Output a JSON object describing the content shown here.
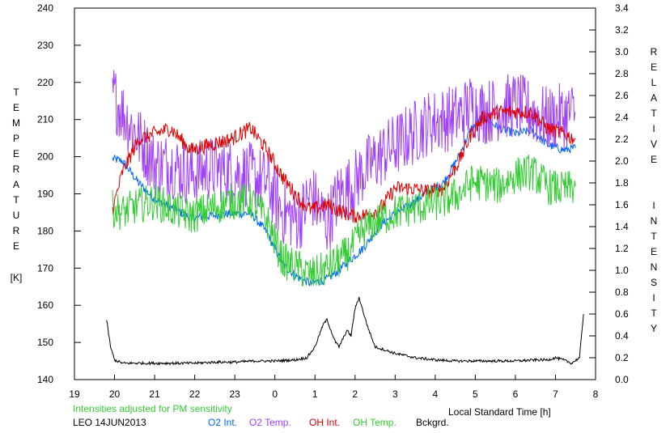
{
  "chart_data": {
    "type": "line",
    "xlabel": "Local Standard Time [h]",
    "ylabel_left": "TEMPERATURE",
    "ylabel_left_unit": "[K]",
    "ylabel_right": "RELATIVE INTENSITY",
    "x_range": [
      19,
      32
    ],
    "x_tick_labels": [
      "19",
      "20",
      "21",
      "22",
      "23",
      "0",
      "1",
      "2",
      "3",
      "4",
      "5",
      "6",
      "7",
      "8"
    ],
    "ylim_left": [
      140,
      240
    ],
    "y_left_ticks": [
      140,
      150,
      160,
      170,
      180,
      190,
      200,
      210,
      220,
      230,
      240
    ],
    "ylim_right": [
      0.0,
      3.4
    ],
    "y_right_ticks": [
      "0.0",
      "0.2",
      "0.4",
      "0.6",
      "0.8",
      "1.0",
      "1.2",
      "1.4",
      "1.6",
      "1.8",
      "2.0",
      "2.2",
      "2.4",
      "2.6",
      "2.8",
      "3.0",
      "3.2",
      "3.4"
    ],
    "grid": false,
    "annotation": "Intensities adjusted for PM sensitivity",
    "station": "LEO 14JUN2013",
    "series": [
      {
        "name": "O2 Int.",
        "axis": "right",
        "color": "#0066ff",
        "x": [
          19.95,
          20.2,
          20.6,
          21.0,
          21.4,
          21.9,
          22.4,
          22.9,
          23.4,
          23.8,
          24.2,
          24.6,
          24.9,
          25.3,
          25.6,
          25.9,
          26.2,
          26.6,
          27.0,
          27.4,
          27.8,
          28.2,
          28.6,
          28.9,
          29.2,
          29.6,
          30.0,
          30.4,
          30.8,
          31.2,
          31.5
        ],
        "values": [
          2.02,
          2.0,
          1.8,
          1.65,
          1.58,
          1.48,
          1.5,
          1.52,
          1.52,
          1.35,
          1.05,
          0.93,
          0.88,
          0.92,
          1.0,
          1.1,
          1.2,
          1.4,
          1.52,
          1.6,
          1.72,
          1.8,
          2.05,
          2.3,
          2.4,
          2.3,
          2.25,
          2.28,
          2.15,
          2.1,
          2.12
        ]
      },
      {
        "name": "O2 Temp.",
        "axis": "left",
        "color": "#a040ff",
        "x": [
          19.95,
          20.2,
          20.6,
          21.0,
          21.4,
          21.9,
          22.4,
          22.9,
          23.4,
          23.8,
          24.2,
          24.6,
          24.9,
          25.3,
          25.6,
          25.9,
          26.2,
          26.6,
          27.0,
          27.4,
          27.8,
          28.2,
          28.6,
          28.9,
          29.2,
          29.6,
          30.0,
          30.4,
          30.8,
          31.2,
          31.5
        ],
        "values": [
          217,
          212,
          205,
          198,
          198,
          195,
          197,
          196,
          195,
          193,
          185,
          183,
          190,
          182,
          190,
          192,
          196,
          200,
          203,
          206,
          209,
          210,
          211,
          214,
          212,
          213,
          214,
          212,
          210,
          211,
          212
        ]
      },
      {
        "name": "OH Int.",
        "axis": "right",
        "color": "#dd0000",
        "x": [
          19.95,
          20.2,
          20.6,
          21.0,
          21.4,
          21.9,
          22.4,
          22.9,
          23.4,
          23.8,
          24.2,
          24.6,
          24.9,
          25.3,
          25.6,
          25.9,
          26.2,
          26.6,
          27.0,
          27.4,
          27.8,
          28.2,
          28.6,
          28.9,
          29.2,
          29.6,
          30.0,
          30.4,
          30.8,
          31.2,
          31.5
        ],
        "values": [
          1.55,
          1.9,
          2.2,
          2.25,
          2.3,
          2.1,
          2.15,
          2.2,
          2.3,
          2.1,
          1.85,
          1.65,
          1.55,
          1.6,
          1.55,
          1.5,
          1.5,
          1.55,
          1.75,
          1.75,
          1.72,
          1.75,
          2.0,
          2.25,
          2.4,
          2.45,
          2.45,
          2.45,
          2.3,
          2.25,
          2.2
        ]
      },
      {
        "name": "OH Temp.",
        "axis": "left",
        "color": "#33cc33",
        "x": [
          19.95,
          20.2,
          20.6,
          21.0,
          21.4,
          21.9,
          22.4,
          22.9,
          23.4,
          23.8,
          24.2,
          24.6,
          24.9,
          25.3,
          25.6,
          25.9,
          26.2,
          26.6,
          27.0,
          27.4,
          27.8,
          28.2,
          28.6,
          28.9,
          29.2,
          29.6,
          30.0,
          30.4,
          30.8,
          31.2,
          31.5
        ],
        "values": [
          186,
          185,
          187,
          188,
          186,
          184,
          186,
          188,
          188,
          183,
          172,
          170,
          168,
          170,
          172,
          175,
          180,
          183,
          185,
          186,
          187,
          188,
          190,
          193,
          193,
          192,
          195,
          196,
          192,
          191,
          192
        ]
      },
      {
        "name": "Bckgrd.",
        "axis": "right",
        "color": "#000000",
        "x": [
          19.8,
          19.9,
          20.0,
          20.2,
          20.5,
          21.0,
          21.5,
          22.0,
          22.5,
          23.0,
          23.5,
          24.0,
          24.5,
          24.8,
          25.0,
          25.2,
          25.3,
          25.5,
          25.6,
          25.8,
          25.9,
          26.0,
          26.1,
          26.3,
          26.5,
          27.0,
          27.5,
          28.0,
          28.5,
          29.0,
          29.5,
          30.0,
          30.5,
          30.8,
          31.0,
          31.2,
          31.4,
          31.6,
          31.7
        ],
        "values": [
          0.55,
          0.3,
          0.18,
          0.15,
          0.15,
          0.15,
          0.15,
          0.15,
          0.16,
          0.16,
          0.17,
          0.17,
          0.18,
          0.2,
          0.3,
          0.5,
          0.55,
          0.35,
          0.3,
          0.45,
          0.4,
          0.65,
          0.75,
          0.5,
          0.3,
          0.24,
          0.2,
          0.18,
          0.17,
          0.17,
          0.17,
          0.17,
          0.18,
          0.18,
          0.2,
          0.18,
          0.15,
          0.2,
          0.6
        ]
      }
    ]
  }
}
